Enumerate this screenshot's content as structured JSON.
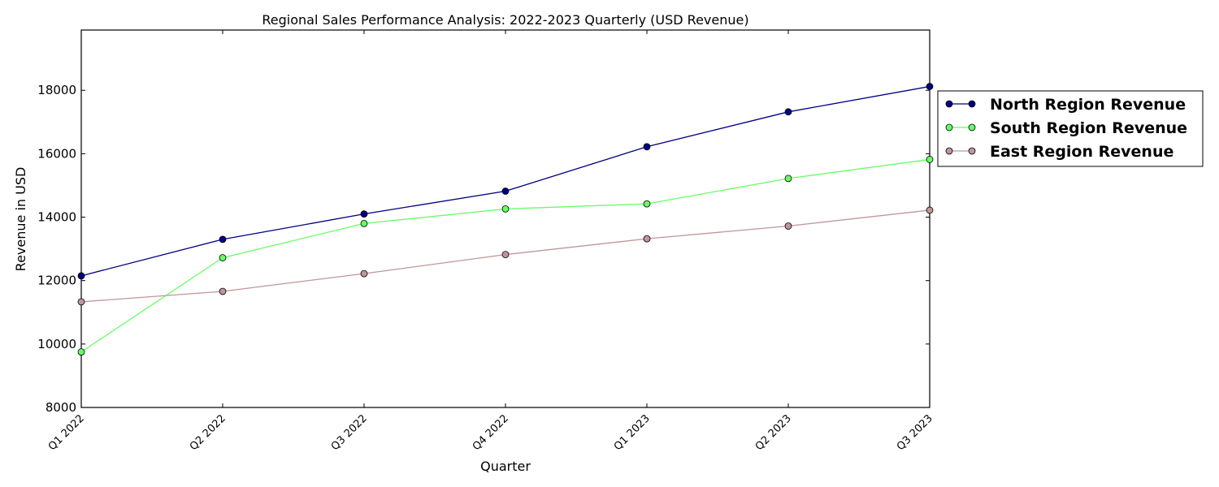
{
  "chart_data": {
    "type": "line",
    "title": "Regional Sales Performance Analysis: 2022-2023 Quarterly (USD Revenue)",
    "xlabel": "Quarter",
    "ylabel": "Revenue in USD",
    "categories": [
      "Q1 2022",
      "Q2 2022",
      "Q3 2022",
      "Q4 2022",
      "Q1 2023",
      "Q2 2023",
      "Q3 2023"
    ],
    "ylim": [
      8000,
      19900
    ],
    "yticks": [
      8000,
      10000,
      12000,
      14000,
      16000,
      18000
    ],
    "grid": false,
    "legend_position": "outside-right",
    "series": [
      {
        "name": "North Region Revenue",
        "color": "#000080",
        "values": [
          12150,
          13300,
          14100,
          14820,
          16220,
          17320,
          18120
        ]
      },
      {
        "name": "South Region Revenue",
        "color": "#66ff66",
        "values": [
          9750,
          12720,
          13800,
          14260,
          14420,
          15220,
          15820
        ]
      },
      {
        "name": "East Region Revenue",
        "color": "#c0959a",
        "values": [
          11330,
          11660,
          12220,
          12820,
          13320,
          13720,
          14220
        ]
      }
    ]
  }
}
